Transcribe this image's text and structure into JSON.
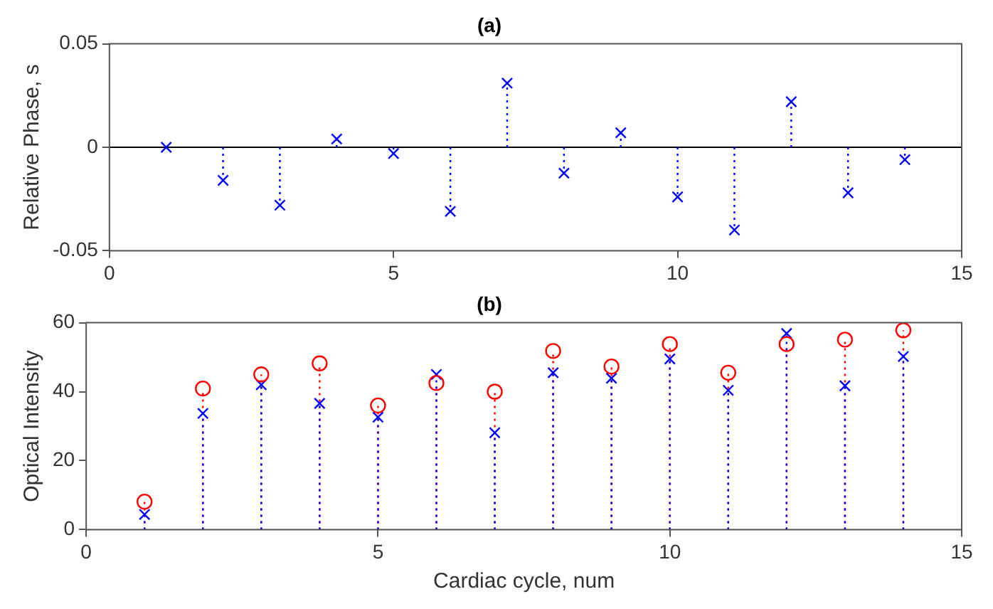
{
  "chart_data": [
    {
      "type": "lollipop",
      "title": "(a)",
      "ylabel": "Relative Phase, s",
      "x": [
        1,
        2,
        3,
        4,
        5,
        6,
        7,
        8,
        9,
        10,
        11,
        12,
        13,
        14
      ],
      "xlim": [
        0,
        15
      ],
      "xticks": [
        0,
        5,
        10,
        15
      ],
      "ylim": [
        -0.05,
        0.05
      ],
      "yticks": [
        -0.05,
        0,
        0.05
      ],
      "grid": false,
      "legend": false,
      "line_style": "dotted",
      "ref_lines": [
        {
          "axis": "y",
          "value": 0,
          "color": "#000000"
        }
      ],
      "series": [
        {
          "color": "#0000ff",
          "marker": "cross",
          "values": [
            0,
            -0.016,
            -0.028,
            0.004,
            -0.003,
            -0.031,
            0.031,
            -0.0125,
            0.007,
            -0.024,
            -0.04,
            0.022,
            -0.022,
            -0.006
          ]
        }
      ]
    },
    {
      "type": "lollipop",
      "title": "(b)",
      "xlabel": "Cardiac cycle, num",
      "ylabel": "Optical Intensity",
      "x": [
        1,
        2,
        3,
        4,
        5,
        6,
        7,
        8,
        9,
        10,
        11,
        12,
        13,
        14
      ],
      "xlim": [
        0,
        15
      ],
      "xticks": [
        0,
        5,
        10,
        15
      ],
      "ylim": [
        0,
        60
      ],
      "yticks": [
        0,
        20,
        40,
        60
      ],
      "grid": false,
      "legend": false,
      "line_style": "dotted",
      "series": [
        {
          "color": "#ff0000",
          "marker": "circle",
          "values": [
            8.1,
            40.9,
            45,
            48.2,
            36,
            42.5,
            40,
            51.8,
            47.3,
            53.8,
            45.5,
            53.8,
            55.1,
            57.8
          ]
        },
        {
          "color": "#0000ff",
          "marker": "cross",
          "values": [
            4.4,
            33.7,
            42,
            36.6,
            32.6,
            45,
            28.1,
            45.5,
            43.9,
            49.5,
            40.4,
            56.9,
            41.7,
            50.2
          ]
        }
      ]
    }
  ]
}
